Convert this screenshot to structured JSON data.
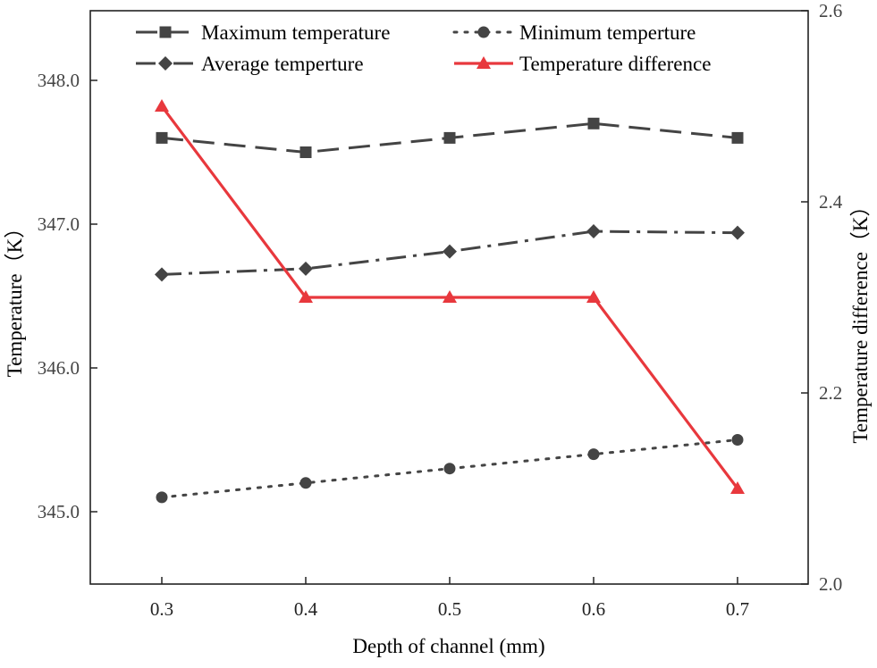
{
  "chart_data": {
    "type": "line",
    "title": "",
    "xlabel": "Depth of channel (mm)",
    "ylabel_left": "Temperature（K）",
    "ylabel_right": "Temperature difference（K）",
    "x": [
      0.3,
      0.4,
      0.5,
      0.6,
      0.7
    ],
    "x_tick_labels": [
      "0.3",
      "0.4",
      "0.5",
      "0.6",
      "0.7"
    ],
    "xlim": [
      0.25,
      0.745
    ],
    "ylim_left": [
      344.5,
      348.5
    ],
    "ylim_right": [
      2.0,
      2.6
    ],
    "left_ticks": [
      345.0,
      346.0,
      347.0,
      348.0
    ],
    "left_tick_labels": [
      "345.0",
      "346.0",
      "347.0",
      "348.0"
    ],
    "right_ticks": [
      2.0,
      2.2,
      2.4,
      2.6
    ],
    "right_tick_labels": [
      "2.0",
      "2.2",
      "2.4",
      "2.6"
    ],
    "grid": false,
    "legend_position": "top",
    "series": [
      {
        "name": "Maximum temperature",
        "axis": "left",
        "values": [
          347.6,
          347.5,
          347.6,
          347.7,
          347.6
        ],
        "color": "#444444",
        "marker": "square",
        "line_style": "dash"
      },
      {
        "name": "Minimum temperture",
        "axis": "left",
        "values": [
          345.1,
          345.2,
          345.3,
          345.4,
          345.5
        ],
        "color": "#444444",
        "marker": "circle",
        "line_style": "dot"
      },
      {
        "name": "Average temperture",
        "axis": "left",
        "values": [
          346.65,
          346.69,
          346.81,
          346.95,
          346.94
        ],
        "color": "#444444",
        "marker": "diamond",
        "line_style": "dashdot"
      },
      {
        "name": "Temperature difference",
        "axis": "right",
        "values": [
          2.5,
          2.3,
          2.3,
          2.3,
          2.1
        ],
        "color": "#e8383d",
        "marker": "triangle",
        "line_style": "solid"
      }
    ]
  }
}
